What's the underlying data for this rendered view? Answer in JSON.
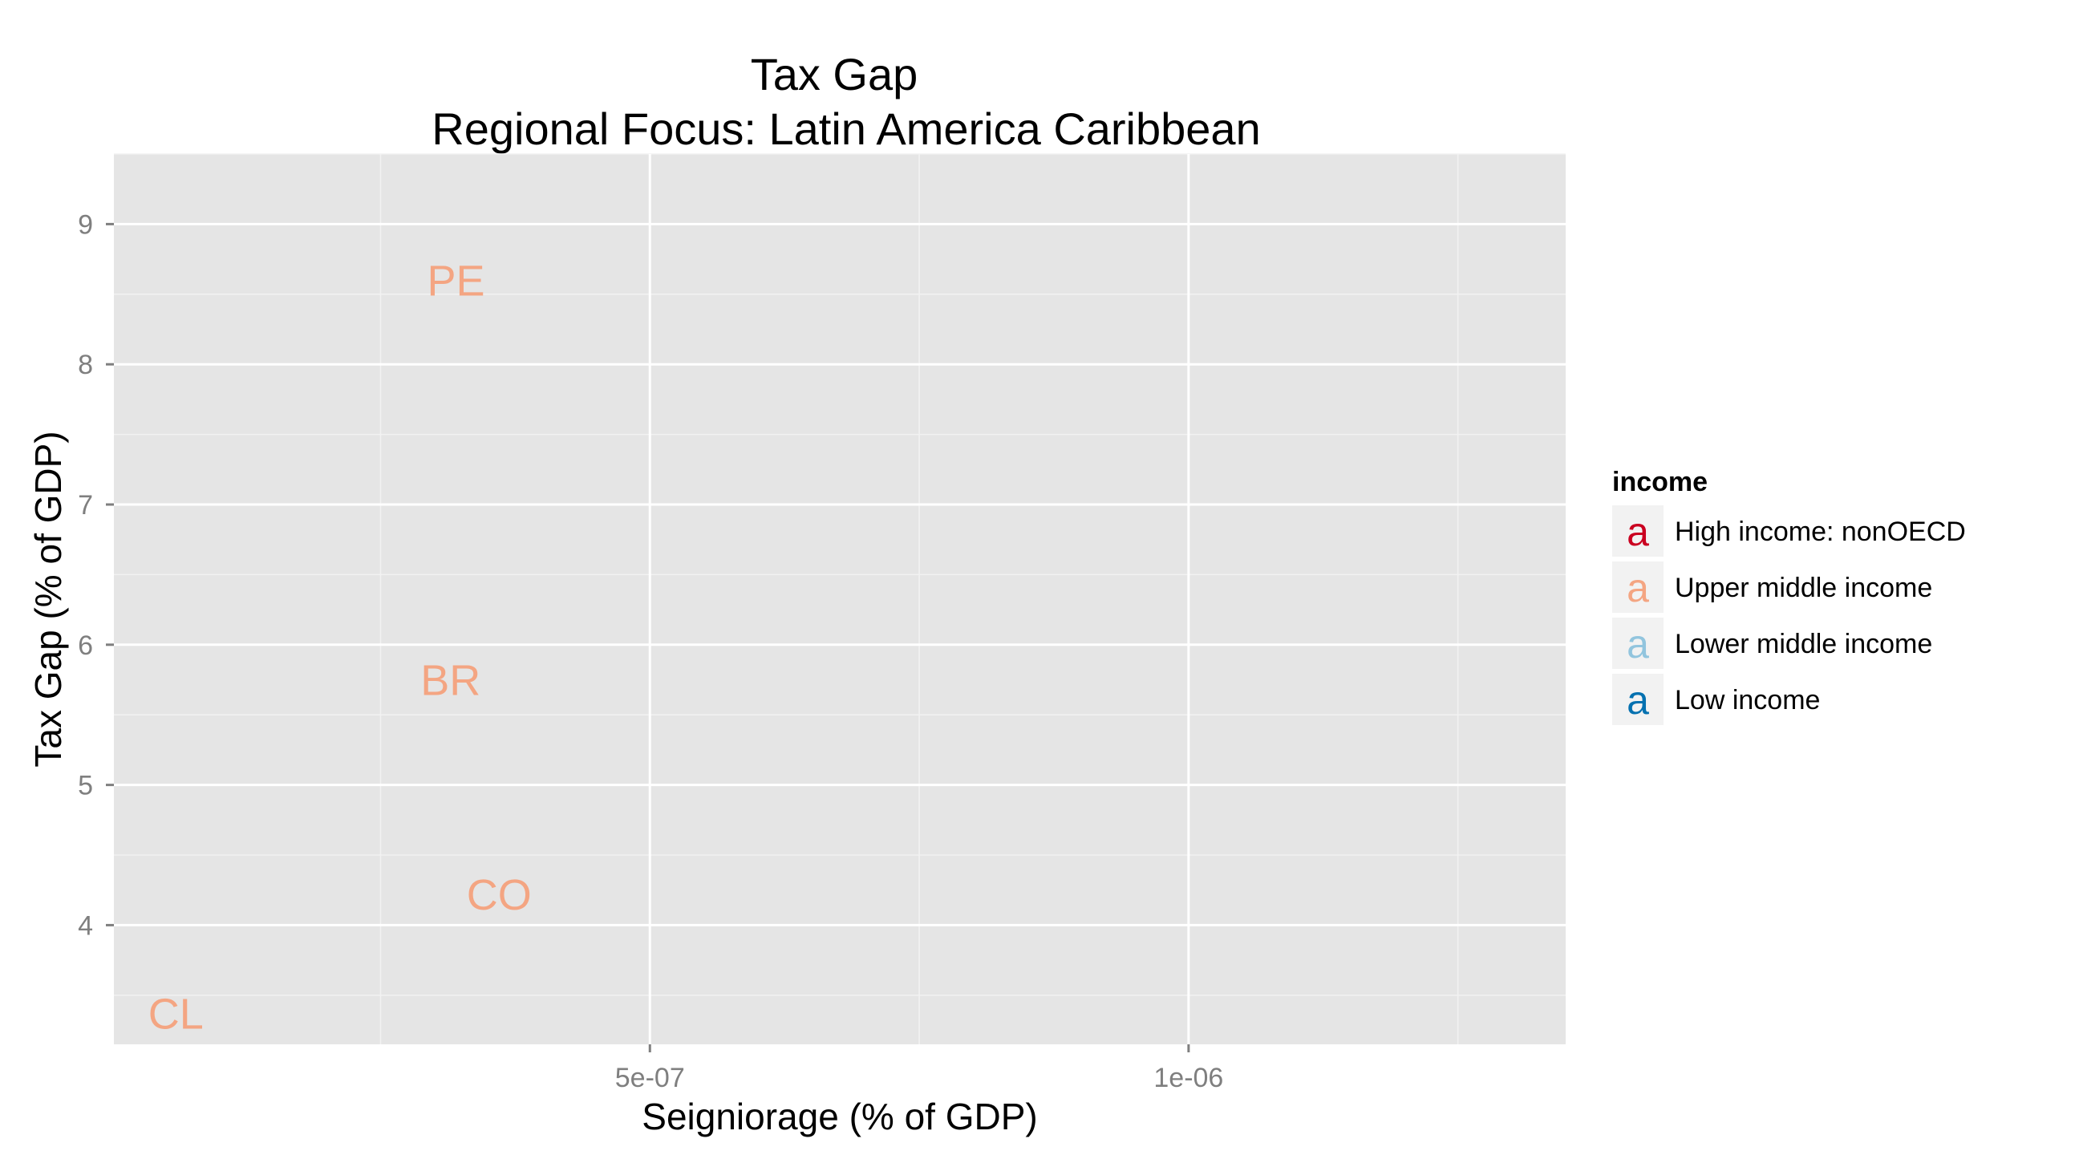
{
  "chart_data": {
    "type": "scatter",
    "title": "Tax Gap",
    "subtitle": "Regional Focus: Latin America Caribbean",
    "xlabel": "Seigniorage (% of GDP)",
    "ylabel": "Tax Gap (% of GDP)",
    "x_ticks": [
      {
        "value": 5e-07,
        "label": "5e-07"
      },
      {
        "value": 1e-06,
        "label": "1e-06"
      }
    ],
    "y_ticks": [
      {
        "value": 4,
        "label": "4"
      },
      {
        "value": 5,
        "label": "5"
      },
      {
        "value": 6,
        "label": "6"
      },
      {
        "value": 7,
        "label": "7"
      },
      {
        "value": 8,
        "label": "8"
      },
      {
        "value": 9,
        "label": "9"
      }
    ],
    "xlim": [
      2.5e-09,
      1.35e-06
    ],
    "ylim": [
      3.15,
      9.5
    ],
    "grid": true,
    "legend_position": "right",
    "legend": {
      "title": "income",
      "key_glyph": "a",
      "entries": [
        {
          "label": "High income: nonOECD",
          "color": "#ca0020"
        },
        {
          "label": "Upper middle income",
          "color": "#f4a582"
        },
        {
          "label": "Lower middle income",
          "color": "#92c5de"
        },
        {
          "label": "Low income",
          "color": "#0571b0"
        }
      ]
    },
    "points": [
      {
        "label": "PE",
        "x": 3.2e-07,
        "y": 8.6,
        "group": "Upper middle income",
        "color": "#f4a582"
      },
      {
        "label": "BR",
        "x": 3.15e-07,
        "y": 5.75,
        "group": "Upper middle income",
        "color": "#f4a582"
      },
      {
        "label": "CO",
        "x": 3.6e-07,
        "y": 4.22,
        "group": "Upper middle income",
        "color": "#f4a582"
      },
      {
        "label": "CL",
        "x": 6e-08,
        "y": 3.37,
        "group": "Upper middle income",
        "color": "#f4a582"
      }
    ],
    "panel_background": "#e5e5e5",
    "grid_color": "#ffffff"
  }
}
